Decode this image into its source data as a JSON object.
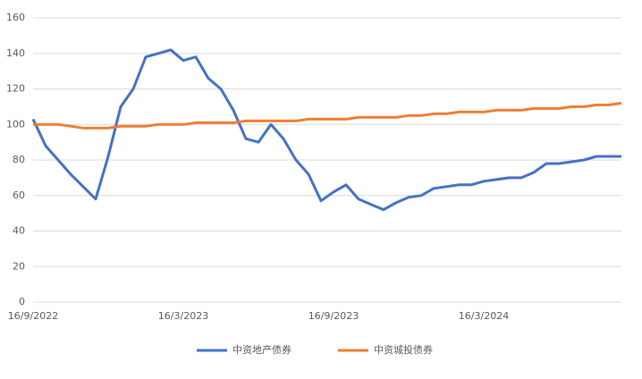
{
  "chart_data": {
    "type": "line",
    "categories": [
      "16/9/2022",
      null,
      null,
      null,
      null,
      null,
      null,
      null,
      null,
      null,
      null,
      null,
      "16/3/2023",
      null,
      null,
      null,
      null,
      null,
      null,
      null,
      null,
      null,
      null,
      null,
      "16/9/2023",
      null,
      null,
      null,
      null,
      null,
      null,
      null,
      null,
      null,
      null,
      null,
      "16/3/2024",
      null,
      null,
      null,
      null,
      null,
      null,
      null,
      null,
      null,
      null,
      null
    ],
    "series": [
      {
        "name": "中资地产债券",
        "color": "#4472c4",
        "values": [
          103,
          88,
          80,
          72,
          65,
          58,
          82,
          110,
          120,
          138,
          140,
          142,
          136,
          138,
          126,
          120,
          108,
          92,
          90,
          100,
          92,
          80,
          72,
          57,
          62,
          66,
          58,
          55,
          52,
          56,
          59,
          60,
          64,
          65,
          66,
          66,
          68,
          69,
          70,
          70,
          73,
          78,
          78,
          79,
          80,
          82,
          82,
          82
        ]
      },
      {
        "name": "中资城投债券",
        "color": "#ed7d31",
        "values": [
          100,
          100,
          100,
          99,
          98,
          98,
          98,
          99,
          99,
          99,
          100,
          100,
          100,
          101,
          101,
          101,
          101,
          102,
          102,
          102,
          102,
          102,
          103,
          103,
          103,
          103,
          104,
          104,
          104,
          104,
          105,
          105,
          106,
          106,
          107,
          107,
          107,
          108,
          108,
          108,
          109,
          109,
          109,
          110,
          110,
          111,
          111,
          112
        ]
      }
    ],
    "ylim": [
      0,
      160
    ],
    "yticks": [
      0,
      20,
      40,
      60,
      80,
      100,
      120,
      140,
      160
    ],
    "grid": true,
    "legend": "bottom"
  }
}
